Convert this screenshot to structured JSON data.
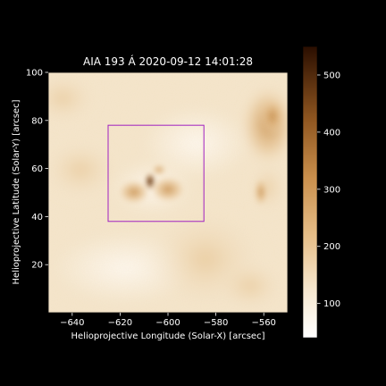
{
  "figure": {
    "title": "AIA 193 Á 2020-09-12 14:01:28",
    "xlabel": "Helioprojective Longitude (Solar-X) [arcsec]",
    "ylabel": "Helioprojective Latitude (Solar-Y) [arcsec]",
    "background": "#000000"
  },
  "image": {
    "type": "heatmap",
    "colormap": "sdoaia193",
    "xlim": [
      -650,
      -550
    ],
    "ylim": [
      0,
      100
    ],
    "xticks": [
      -640,
      -620,
      -600,
      -580,
      -560
    ],
    "yticks": [
      20,
      40,
      60,
      80,
      100
    ],
    "xtick_labels": [
      "−640",
      "−620",
      "−600",
      "−580",
      "−560"
    ],
    "ytick_labels": [
      "20",
      "40",
      "60",
      "80",
      "100"
    ],
    "roi_box": {
      "x0": -625,
      "x1": -585,
      "y0": 38,
      "y1": 78,
      "color": "#a020c0"
    }
  },
  "colorbar": {
    "range": [
      40,
      550
    ],
    "ticks": [
      100,
      200,
      300,
      400,
      500
    ],
    "tick_labels": [
      "100",
      "200",
      "300",
      "400",
      "500"
    ],
    "colors": [
      "#ffffff",
      "#f2dcb8",
      "#e0b078",
      "#b87a3c",
      "#7a4414",
      "#2a0e00"
    ]
  }
}
